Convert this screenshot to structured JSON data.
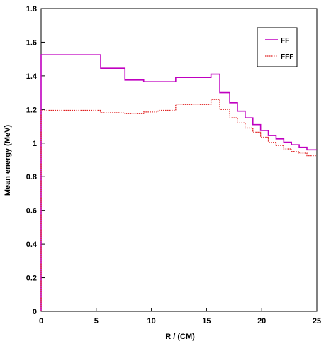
{
  "chart_data": {
    "type": "line",
    "title": "",
    "xlabel": "R / (CM)",
    "ylabel": "Mean energy (MeV)",
    "xlim": [
      0,
      25
    ],
    "ylim": [
      0,
      1.8
    ],
    "x_ticks": [
      0,
      5,
      10,
      15,
      20,
      25
    ],
    "y_ticks": [
      0,
      0.2,
      0.4,
      0.6,
      0.8,
      1,
      1.2,
      1.4,
      1.6,
      1.8
    ],
    "x_tick_labels": [
      "0",
      "5",
      "10",
      "15",
      "20",
      "25"
    ],
    "y_tick_labels": [
      "0",
      "0.2",
      "0.4",
      "0.6",
      "0.8",
      "1",
      "1.2",
      "1.4",
      "1.6",
      "1.8"
    ],
    "grid": false,
    "legend_position": "top-right",
    "step": true,
    "series": [
      {
        "name": "FF",
        "color": "#c000c0",
        "style": "solid",
        "x": [
          0,
          5.4,
          7.6,
          9.3,
          12.2,
          15.4,
          16.2,
          17.1,
          17.8,
          18.5,
          19.2,
          19.9,
          20.6,
          21.3,
          22.0,
          22.7,
          23.4,
          24.1,
          24.6,
          25
        ],
        "y": [
          1.525,
          1.445,
          1.375,
          1.365,
          1.39,
          1.41,
          1.3,
          1.24,
          1.19,
          1.15,
          1.11,
          1.075,
          1.045,
          1.025,
          1.005,
          0.99,
          0.975,
          0.96,
          0.96,
          0.96
        ]
      },
      {
        "name": "FFF",
        "color": "#e02020",
        "style": "dotted",
        "x": [
          0,
          5.4,
          7.6,
          9.3,
          10.6,
          12.2,
          15.4,
          16.2,
          17.1,
          17.8,
          18.5,
          19.2,
          19.9,
          20.6,
          21.3,
          22.0,
          22.7,
          23.4,
          24.1,
          24.6,
          25
        ],
        "y": [
          1.195,
          1.18,
          1.175,
          1.185,
          1.195,
          1.23,
          1.26,
          1.2,
          1.15,
          1.12,
          1.09,
          1.065,
          1.035,
          1.005,
          0.985,
          0.965,
          0.95,
          0.94,
          0.925,
          0.925,
          0.925
        ]
      }
    ]
  }
}
